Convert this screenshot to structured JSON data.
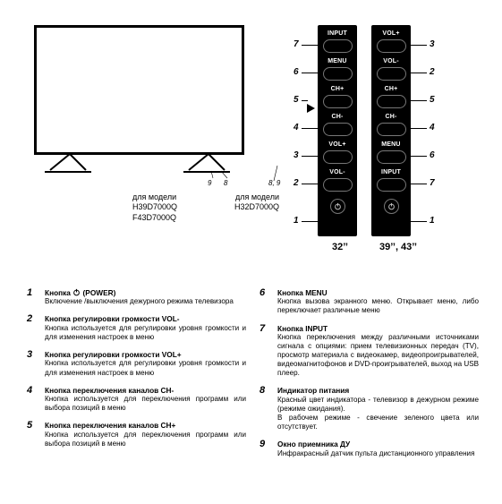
{
  "tv": {
    "ref9": "9",
    "ref8": "8",
    "model_label1": "для модели",
    "model_lines1": "H39D7000Q\nF43D7000Q",
    "ref89": "8, 9",
    "model_label2": "для модели",
    "model_lines2": "H32D7000Q"
  },
  "panels": {
    "p32": {
      "buttons": [
        "INPUT",
        "MENU",
        "CH+",
        "CH-",
        "VOL+",
        "VOL-"
      ],
      "refs_left": [
        "7",
        "6",
        "5",
        "4",
        "3",
        "2",
        "1"
      ],
      "caption": "32’’"
    },
    "p39": {
      "buttons": [
        "VOL+",
        "VOL-",
        "CH+",
        "CH-",
        "MENU",
        "INPUT"
      ],
      "refs_right": [
        "3",
        "2",
        "5",
        "4",
        "6",
        "7",
        "1"
      ],
      "caption": "39’’, 43’’"
    }
  },
  "list": {
    "left": [
      {
        "n": "1",
        "title_pre": "Кнопка ",
        "pwr": true,
        "title_post": " (POWER)",
        "desc": "Включение /выключения дежурного режима телевизора"
      },
      {
        "n": "2",
        "title": "Кнопка регулировки громкости  VOL-",
        "desc": "Кнопка используется для регулировки уровня громкости и для изменения настроек в меню"
      },
      {
        "n": "3",
        "title": "Кнопка регулировки громкости  VOL+",
        "desc": "Кнопка используется для регулировки уровня громкости и для изменения настроек в меню"
      },
      {
        "n": "4",
        "title": "Кнопка переключения каналов  CH-",
        "desc": "Кнопка используется для переключения программ или выбора позиций в меню"
      },
      {
        "n": "5",
        "title": "Кнопка переключения каналов  CH+",
        "desc": "Кнопка используется для переключения программ или выбора позиций в меню"
      }
    ],
    "right": [
      {
        "n": "6",
        "title": "Кнопка MENU",
        "desc": "Кнопка вызова экранного меню. Открывает меню, либо переключает различные меню"
      },
      {
        "n": "7",
        "title": "Кнопка INPUT",
        "desc": "Кнопка переключения между различными источниками сигнала с опциями: прием телевизионных передач (TV), просмотр материала с видеокамер, видеопроигрывателей, видеомагнитофонов и DVD-проигрывателей, выход на USB плеер."
      },
      {
        "n": "8",
        "title": "Индикатор питания",
        "desc": "Красный цвет индикатора - телевизор в дежурном режиме (режиме ожидания).\nВ рабочем режиме - свечение зеленого цвета или отсутствует."
      },
      {
        "n": "9",
        "title": "Окно приемника ДУ",
        "desc": "Инфракрасный датчик пульта дистанционного управления"
      }
    ]
  }
}
